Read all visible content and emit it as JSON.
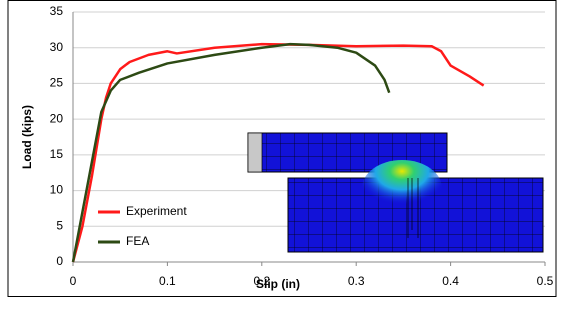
{
  "chart_data": {
    "type": "line",
    "x_label": "Slip (in)",
    "y_label": "Load (kips)",
    "xlim": [
      0,
      0.5
    ],
    "xticks": [
      0,
      0.1,
      0.2,
      0.3,
      0.4,
      0.5
    ],
    "ylim": [
      0,
      35
    ],
    "yticks": [
      0,
      5,
      10,
      15,
      20,
      25,
      30,
      35
    ],
    "grid": true,
    "legend": "lower left",
    "series": [
      {
        "name": "Experiment",
        "color": "#ff1a1a",
        "x": [
          0,
          0.01,
          0.02,
          0.03,
          0.035,
          0.04,
          0.05,
          0.06,
          0.08,
          0.1,
          0.11,
          0.15,
          0.2,
          0.25,
          0.3,
          0.35,
          0.38,
          0.39,
          0.4,
          0.42,
          0.435
        ],
        "values": [
          0,
          5,
          12,
          20,
          23,
          25,
          27,
          28,
          29,
          29.5,
          29.2,
          30,
          30.5,
          30.4,
          30.2,
          30.3,
          30.2,
          29.5,
          27.5,
          26,
          24.7
        ]
      },
      {
        "name": "FEA",
        "color": "#2d4a14",
        "x": [
          0,
          0.01,
          0.02,
          0.03,
          0.04,
          0.05,
          0.07,
          0.1,
          0.15,
          0.2,
          0.23,
          0.25,
          0.28,
          0.3,
          0.32,
          0.33,
          0.335
        ],
        "values": [
          0,
          7,
          14,
          21,
          24,
          25.5,
          26.5,
          27.8,
          29,
          30,
          30.5,
          30.4,
          30,
          29.3,
          27.5,
          25.5,
          23.7
        ]
      }
    ]
  }
}
